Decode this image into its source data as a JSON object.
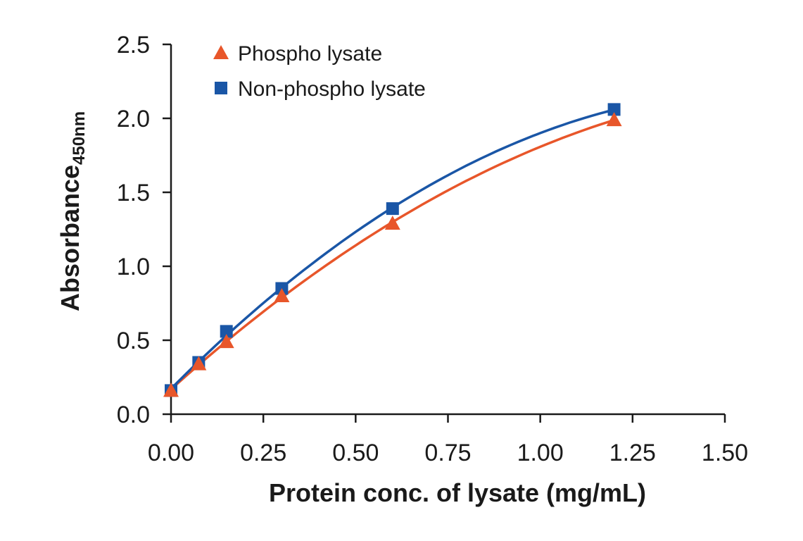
{
  "chart_data": {
    "type": "scatter",
    "title": "",
    "xlabel": "Protein conc. of lysate (mg/mL)",
    "ylabel": "Absorbance",
    "ylabel_sub": "450nm",
    "xlim": [
      0,
      1.5
    ],
    "ylim": [
      0,
      2.5
    ],
    "x_ticks": [
      "0.00",
      "0.25",
      "0.50",
      "0.75",
      "1.00",
      "1.25",
      "1.50"
    ],
    "y_ticks": [
      "0.0",
      "0.5",
      "1.0",
      "1.5",
      "2.0",
      "2.5"
    ],
    "grid": false,
    "legend_position": "top-left",
    "series": [
      {
        "name": "Phospho lysate",
        "marker": "triangle",
        "color": "#e8562a",
        "x": [
          0,
          0.075,
          0.15,
          0.3,
          0.6,
          1.2
        ],
        "y": [
          0.16,
          0.34,
          0.49,
          0.8,
          1.29,
          1.99
        ]
      },
      {
        "name": "Non-phospho lysate",
        "marker": "square",
        "color": "#1a56a6",
        "x": [
          0,
          0.075,
          0.15,
          0.3,
          0.6,
          1.2
        ],
        "y": [
          0.16,
          0.35,
          0.56,
          0.85,
          1.39,
          2.06
        ]
      }
    ]
  }
}
